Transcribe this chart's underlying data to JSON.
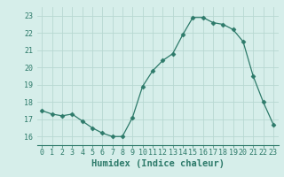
{
  "x": [
    0,
    1,
    2,
    3,
    4,
    5,
    6,
    7,
    8,
    9,
    10,
    11,
    12,
    13,
    14,
    15,
    16,
    17,
    18,
    19,
    20,
    21,
    22,
    23
  ],
  "y": [
    17.5,
    17.3,
    17.2,
    17.3,
    16.9,
    16.5,
    16.2,
    16.0,
    16.0,
    17.1,
    18.9,
    19.8,
    20.4,
    20.8,
    21.9,
    22.9,
    22.9,
    22.6,
    22.5,
    22.2,
    21.5,
    19.5,
    18.0,
    16.7
  ],
  "line_color": "#2d7a6a",
  "marker": "D",
  "marker_size": 2.5,
  "bg_color": "#d6eeea",
  "grid_color": "#b8d8d2",
  "xlabel": "Humidex (Indice chaleur)",
  "ylim": [
    15.5,
    23.5
  ],
  "xlim": [
    -0.5,
    23.5
  ],
  "yticks": [
    16,
    17,
    18,
    19,
    20,
    21,
    22,
    23
  ],
  "xticks": [
    0,
    1,
    2,
    3,
    4,
    5,
    6,
    7,
    8,
    9,
    10,
    11,
    12,
    13,
    14,
    15,
    16,
    17,
    18,
    19,
    20,
    21,
    22,
    23
  ],
  "tick_color": "#2d7a6a",
  "label_color": "#2d7a6a",
  "xlabel_fontsize": 7.5,
  "tick_fontsize": 6.0
}
